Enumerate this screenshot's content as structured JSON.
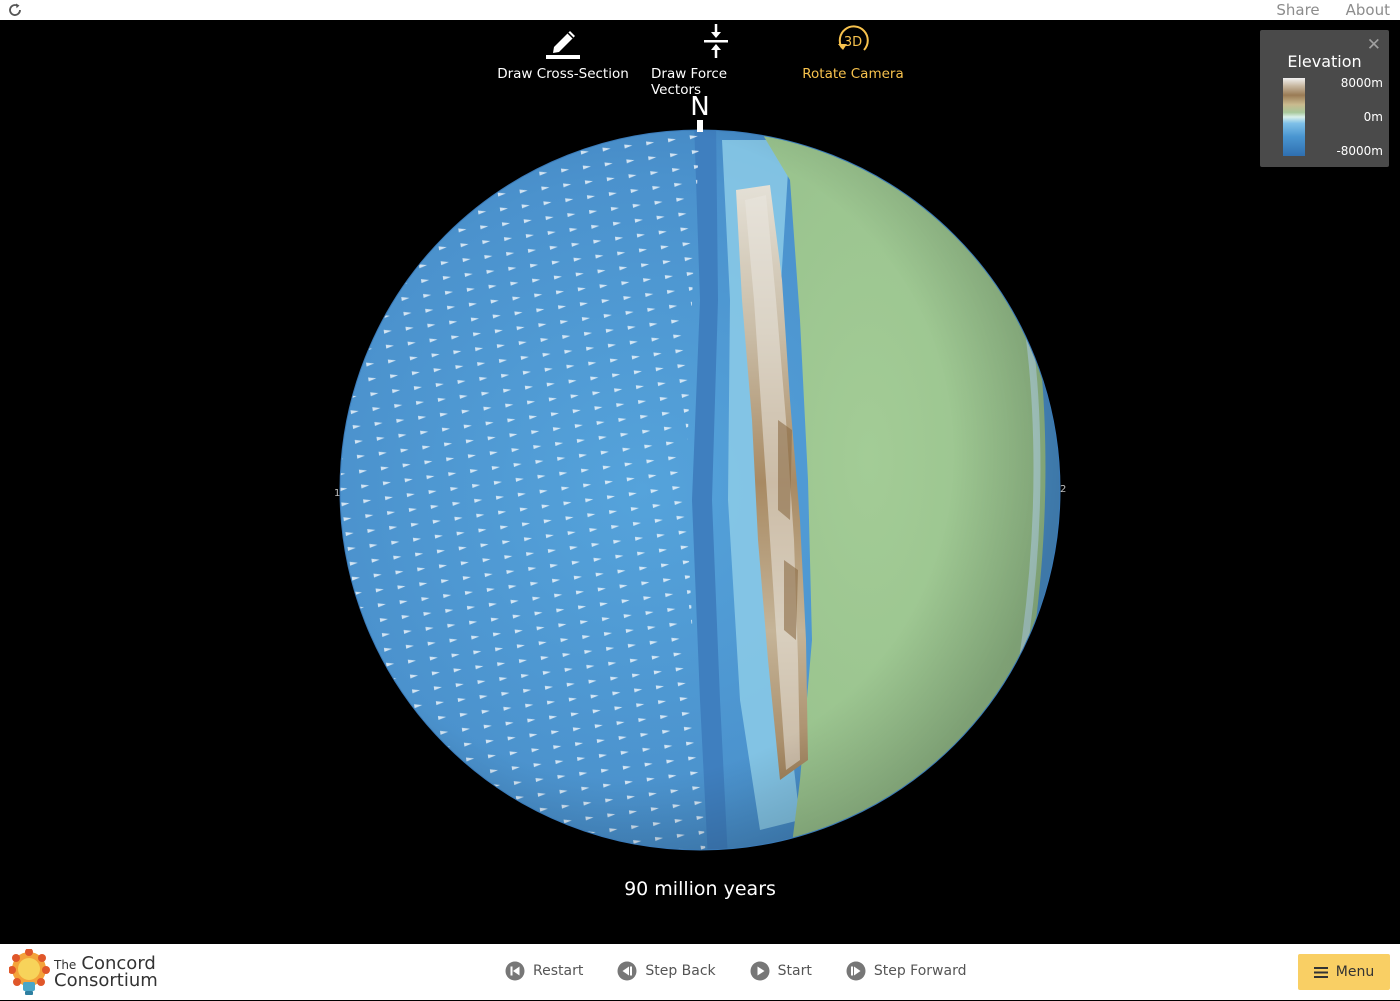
{
  "header": {
    "share_label": "Share",
    "about_label": "About"
  },
  "toolbar": {
    "tools": [
      {
        "label": "Draw Cross-Section",
        "icon": "pencil-icon"
      },
      {
        "label": "Draw Force Vectors",
        "icon": "force-arrows-icon"
      },
      {
        "label": "Rotate Camera",
        "icon": "rotate-3d-icon",
        "icon_text": "3D",
        "active": true
      }
    ]
  },
  "globe": {
    "north_label": "N",
    "left_marker": "1",
    "right_marker": "2"
  },
  "legend": {
    "title": "Elevation",
    "max_label": "8000m",
    "mid_label": "0m",
    "min_label": "-8000m"
  },
  "time_label": "90 million years",
  "footer": {
    "logo": {
      "line_1_small": "The",
      "line_1_big": "Concord",
      "line_2": "Consortium"
    },
    "controls": {
      "restart_label": "Restart",
      "step_back_label": "Step Back",
      "start_label": "Start",
      "step_forward_label": "Step Forward"
    },
    "menu_label": "Menu"
  },
  "colors": {
    "accent": "#f7c24d",
    "ocean": "#4a96d1",
    "land": "#9cc790",
    "menu_button": "#f9cf64"
  }
}
